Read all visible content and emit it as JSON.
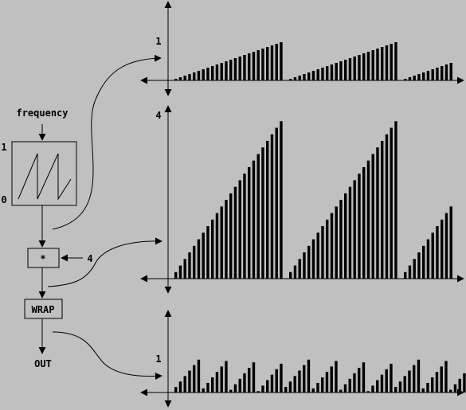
{
  "blocks": {
    "phasor": {
      "input_label": "frequency",
      "y_top_label": "1",
      "y_bottom_label": "0"
    },
    "multiply": {
      "symbol": "*",
      "operand": "4"
    },
    "wrap": {
      "label": "WRAP"
    },
    "output": {
      "label": "OUT"
    }
  },
  "colors": {
    "background": "#c0c0c0",
    "ink": "#000000"
  },
  "chart_data": [
    {
      "type": "bar",
      "y_tick_label": "1",
      "ylim": [
        0,
        1
      ],
      "cycles": [
        [
          0.04,
          0.08,
          0.12,
          0.16,
          0.2,
          0.24,
          0.28,
          0.32,
          0.36,
          0.4,
          0.44,
          0.48,
          0.52,
          0.56,
          0.6,
          0.64,
          0.68,
          0.72,
          0.76,
          0.8,
          0.84,
          0.88,
          0.92,
          0.96
        ],
        [
          0.04,
          0.08,
          0.12,
          0.16,
          0.2,
          0.24,
          0.28,
          0.32,
          0.36,
          0.4,
          0.44,
          0.48,
          0.52,
          0.56,
          0.6,
          0.64,
          0.68,
          0.72,
          0.76,
          0.8,
          0.84,
          0.88,
          0.92,
          0.96
        ],
        [
          0.04,
          0.08,
          0.12,
          0.16,
          0.2,
          0.24,
          0.28,
          0.32,
          0.36,
          0.4,
          0.44
        ]
      ]
    },
    {
      "type": "bar",
      "y_tick_label": "4",
      "ylim": [
        0,
        4
      ],
      "cycles": [
        [
          0.16,
          0.32,
          0.48,
          0.64,
          0.8,
          0.96,
          1.12,
          1.28,
          1.44,
          1.6,
          1.76,
          1.92,
          2.08,
          2.24,
          2.4,
          2.56,
          2.72,
          2.88,
          3.04,
          3.2,
          3.36,
          3.52,
          3.68,
          3.84
        ],
        [
          0.16,
          0.32,
          0.48,
          0.64,
          0.8,
          0.96,
          1.12,
          1.28,
          1.44,
          1.6,
          1.76,
          1.92,
          2.08,
          2.24,
          2.4,
          2.56,
          2.72,
          2.88,
          3.04,
          3.2,
          3.36,
          3.52,
          3.68,
          3.84
        ],
        [
          0.16,
          0.32,
          0.48,
          0.64,
          0.8,
          0.96,
          1.12,
          1.28,
          1.44,
          1.6,
          1.76
        ]
      ]
    },
    {
      "type": "bar",
      "y_tick_label": "1",
      "ylim": [
        0,
        1
      ],
      "cycles": [
        [
          0.16,
          0.32,
          0.48,
          0.64,
          0.8,
          0.96
        ],
        [
          0.12,
          0.28,
          0.44,
          0.6,
          0.76,
          0.92
        ],
        [
          0.08,
          0.24,
          0.4,
          0.56,
          0.72,
          0.88
        ],
        [
          0.04,
          0.2,
          0.36,
          0.52,
          0.68,
          0.84
        ],
        [
          0.16,
          0.32,
          0.48,
          0.64,
          0.8,
          0.96
        ],
        [
          0.12,
          0.28,
          0.44,
          0.6,
          0.76,
          0.92
        ],
        [
          0.08,
          0.24,
          0.4,
          0.56,
          0.72,
          0.88
        ],
        [
          0.04,
          0.2,
          0.36,
          0.52,
          0.68,
          0.84
        ],
        [
          0.16,
          0.32,
          0.48,
          0.64,
          0.8,
          0.96
        ],
        [
          0.12,
          0.28,
          0.44,
          0.6,
          0.76,
          0.92
        ],
        [
          0.08,
          0.24,
          0.4,
          0.56,
          0.72,
          0.88
        ],
        [
          0.04,
          0.2,
          0.36,
          0.52,
          0.68,
          0.84
        ]
      ]
    }
  ]
}
